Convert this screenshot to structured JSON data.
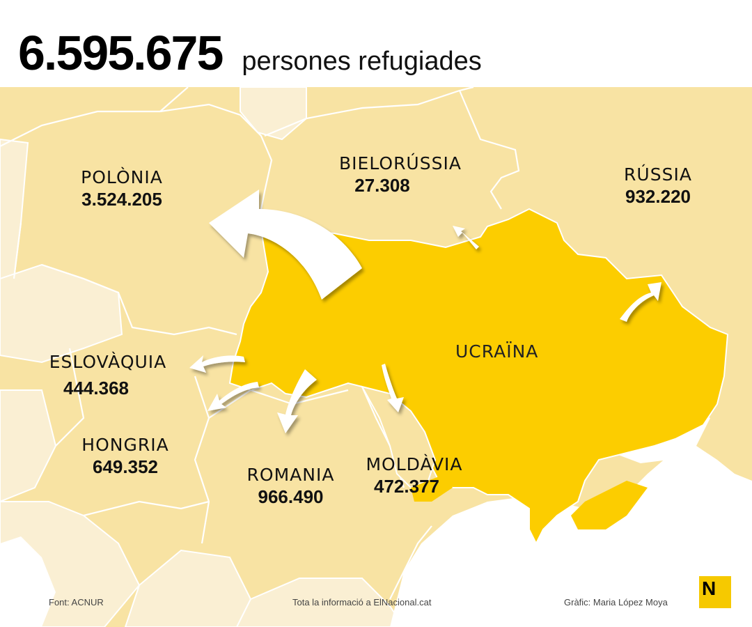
{
  "header": {
    "total": "6.595.675",
    "subtitle": "persones refugiades"
  },
  "countries": {
    "poland": {
      "name": "POLÒNIA",
      "value": "3.524.205"
    },
    "belarus": {
      "name": "BIELORÚSSIA",
      "value": "27.308"
    },
    "russia": {
      "name": "RÚSSIA",
      "value": "932.220"
    },
    "slovakia": {
      "name": "ESLOVÀQUIA",
      "value": "444.368"
    },
    "hungary": {
      "name": "HONGRIA",
      "value": "649.352"
    },
    "romania": {
      "name": "ROMANIA",
      "value": "966.490"
    },
    "moldova": {
      "name": "MOLDÀVIA",
      "value": "472.377"
    },
    "ukraine": {
      "name": "UCRAÏNA"
    }
  },
  "footer": {
    "source": "Font: ACNUR",
    "info": "Tota la informació a ElNacional.cat",
    "credit": "Gràfic: Maria López Moya"
  },
  "logo": {
    "letter": "N"
  },
  "colors": {
    "ukraine": "#fccd00",
    "neighbors": "#f8e3a3",
    "outer": "#faefd3",
    "sea": "#ffffff",
    "arrow": "#ffffff",
    "logo": "#f6c900"
  }
}
